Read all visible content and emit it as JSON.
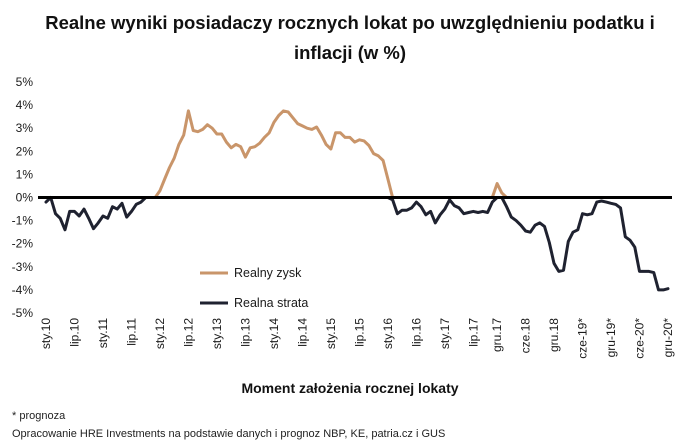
{
  "chart_data": {
    "type": "line",
    "title": "Realne wyniki posiadaczy rocznych lokat po uwzględnieniu podatku i inflacji (w %)",
    "xlabel": "Moment założenia rocznej lokaty",
    "ylabel": "",
    "ylim": [
      -5,
      5
    ],
    "yticks": [
      "-5%",
      "-4%",
      "-3%",
      "-2%",
      "-1%",
      "0%",
      "1%",
      "2%",
      "3%",
      "4%",
      "5%"
    ],
    "x": [
      "sty.10",
      "lut.10",
      "mar.10",
      "kwi.10",
      "maj.10",
      "cze.10",
      "lip.10",
      "sie.10",
      "wrz.10",
      "paź.10",
      "lis.10",
      "gru.10",
      "sty.11",
      "lut.11",
      "mar.11",
      "kwi.11",
      "maj.11",
      "cze.11",
      "lip.11",
      "sie.11",
      "wrz.11",
      "paź.11",
      "lis.11",
      "gru.11",
      "sty.12",
      "lut.12",
      "mar.12",
      "kwi.12",
      "maj.12",
      "cze.12",
      "lip.12",
      "sie.12",
      "wrz.12",
      "paź.12",
      "lis.12",
      "gru.12",
      "sty.13",
      "lut.13",
      "mar.13",
      "kwi.13",
      "maj.13",
      "cze.13",
      "lip.13",
      "sie.13",
      "wrz.13",
      "paź.13",
      "lis.13",
      "gru.13",
      "sty.14",
      "lut.14",
      "mar.14",
      "kwi.14",
      "maj.14",
      "cze.14",
      "lip.14",
      "sie.14",
      "wrz.14",
      "paź.14",
      "lis.14",
      "gru.14",
      "sty.15",
      "lut.15",
      "mar.15",
      "kwi.15",
      "maj.15",
      "cze.15",
      "lip.15",
      "sie.15",
      "wrz.15",
      "paź.15",
      "lis.15",
      "gru.15",
      "sty.16",
      "lut.16",
      "mar.16",
      "kwi.16",
      "maj.16",
      "cze.16",
      "lip.16",
      "sie.16",
      "wrz.16",
      "paź.16",
      "lis.16",
      "gru.16",
      "sty.17",
      "lut.17",
      "mar.17",
      "kwi.17",
      "maj.17",
      "cze.17",
      "lip.17",
      "sie.17",
      "wrz.17",
      "paź.17",
      "lis.17",
      "gru.17",
      "sty.18",
      "lut.18",
      "mar.18",
      "kwi.18",
      "maj.18",
      "cze.18",
      "lip.18",
      "sie.18",
      "wrz.18",
      "paź.18",
      "lis.18",
      "gru.18",
      "sty.19",
      "lut.19",
      "mar.19",
      "kwi.19",
      "maj.19",
      "cze.19*",
      "lip.19*",
      "sie.19*",
      "wrz.19*",
      "paź.19*",
      "lis.19*",
      "gru.19*",
      "sty.20*",
      "lut.20*",
      "mar.20*",
      "kwi.20*",
      "maj.20*",
      "cze.20*",
      "lip.20*",
      "sie.20*",
      "wrz.20*",
      "paź.20*",
      "lis.20*",
      "gru.20*"
    ],
    "tick_labels": [
      "sty.10",
      "lip.10",
      "sty.11",
      "lip.11",
      "sty.12",
      "lip.12",
      "sty.13",
      "lip.13",
      "sty.14",
      "lip.14",
      "sty.15",
      "lip.15",
      "sty.16",
      "lip.16",
      "sty.17",
      "lip.17",
      "gru.17",
      "cze.18",
      "gru.18",
      "cze-19*",
      "gru-19*",
      "cze-20*",
      "gru-20*"
    ],
    "series": [
      {
        "name": "Realny zysk",
        "color": "#c9956a",
        "values": [
          0,
          0,
          0,
          0,
          0,
          0,
          0,
          0,
          0,
          0,
          0,
          0,
          0,
          0,
          0,
          0,
          0,
          0,
          0,
          0,
          0,
          0,
          0,
          0,
          0.3,
          0.8,
          1.3,
          1.7,
          2.3,
          2.7,
          3.75,
          2.9,
          2.85,
          2.95,
          3.15,
          3.0,
          2.75,
          2.75,
          2.4,
          2.15,
          2.3,
          2.2,
          1.75,
          2.15,
          2.2,
          2.35,
          2.6,
          2.8,
          3.25,
          3.55,
          3.75,
          3.7,
          3.45,
          3.2,
          3.1,
          3.0,
          2.95,
          3.05,
          2.7,
          2.3,
          2.1,
          2.8,
          2.8,
          2.6,
          2.6,
          2.4,
          2.5,
          2.45,
          2.25,
          1.9,
          1.8,
          1.6,
          0.8,
          0,
          0,
          0,
          0,
          0,
          0,
          0,
          0,
          0,
          0,
          0,
          0,
          0,
          0,
          0,
          0,
          0,
          0,
          0,
          0,
          0,
          0,
          0.6,
          0.2,
          0,
          0,
          0,
          0,
          0,
          0,
          0,
          0,
          0,
          0,
          0,
          0,
          0,
          0,
          0,
          0,
          0,
          0,
          0,
          0,
          0,
          0,
          0,
          0,
          0,
          0,
          0,
          0,
          0,
          0,
          0,
          0,
          0,
          0,
          0
        ]
      },
      {
        "name": "Realna strata",
        "color": "#1f2230",
        "values": [
          -0.2,
          0,
          -0.7,
          -0.9,
          -1.4,
          -0.6,
          -0.6,
          -0.8,
          -0.5,
          -0.9,
          -1.35,
          -1.1,
          -0.8,
          -0.9,
          -0.4,
          -0.5,
          -0.25,
          -0.85,
          -0.6,
          -0.3,
          -0.2,
          0,
          0,
          0,
          0,
          0,
          0,
          0,
          0,
          0,
          0,
          0,
          0,
          0,
          0,
          0,
          0,
          0,
          0,
          0,
          0,
          0,
          0,
          0,
          0,
          0,
          0,
          0,
          0,
          0,
          0,
          0,
          0,
          0,
          0,
          0,
          0,
          0,
          0,
          0,
          0,
          0,
          0,
          0,
          0,
          0,
          0,
          0,
          0,
          0,
          0,
          0,
          0,
          -0.1,
          -0.7,
          -0.55,
          -0.55,
          -0.45,
          -0.2,
          -0.4,
          -0.75,
          -0.6,
          -1.1,
          -0.75,
          -0.5,
          -0.1,
          -0.35,
          -0.45,
          -0.7,
          -0.65,
          -0.6,
          -0.65,
          -0.6,
          -0.65,
          -0.2,
          0,
          0,
          -0.4,
          -0.85,
          -1.0,
          -1.2,
          -1.45,
          -1.5,
          -1.2,
          -1.1,
          -1.25,
          -1.95,
          -2.85,
          -3.2,
          -3.15,
          -1.9,
          -1.5,
          -1.4,
          -0.7,
          -0.75,
          -0.7,
          -0.2,
          -0.15,
          -0.2,
          -0.25,
          -0.3,
          -0.45,
          -1.7,
          -1.85,
          -2.15,
          -3.2,
          -3.2,
          -3.2,
          -3.25,
          -4.0,
          -4.0,
          -3.95
        ]
      }
    ],
    "reference_line": {
      "y": 0,
      "color": "#000000"
    },
    "legend": "middle-left, inside plot",
    "grid": false
  },
  "footer": {
    "note": "* prognoza",
    "source": "Opracowanie HRE Investments na podstawie danych i prognoz NBP, KE, patria.cz  i GUS"
  }
}
